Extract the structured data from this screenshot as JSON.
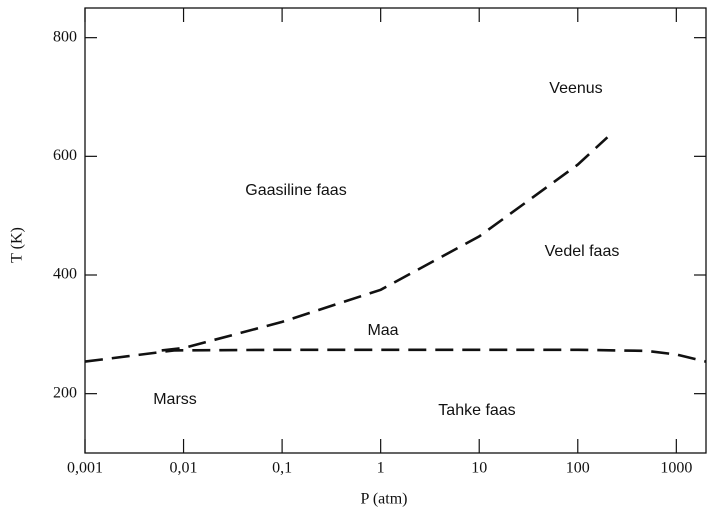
{
  "chart_data": {
    "type": "line",
    "xlabel": "P (atm)",
    "ylabel": "T (K)",
    "xscale": "log",
    "xlim": [
      0.001,
      2000
    ],
    "ylim": [
      100,
      850
    ],
    "xticks": [
      {
        "value": 0.001,
        "label": "0,001"
      },
      {
        "value": 0.01,
        "label": "0,01"
      },
      {
        "value": 0.1,
        "label": "0,1"
      },
      1,
      10,
      100,
      1000
    ],
    "yticks": [
      200,
      400,
      600,
      800
    ],
    "grid": false,
    "series": [
      {
        "color": "#111111",
        "dash": true,
        "x": [
          0.001,
          0.003,
          0.008,
          0.1,
          1,
          10,
          100,
          500,
          1000,
          2000
        ],
        "values": [
          254,
          264,
          273,
          274,
          274,
          274,
          274,
          272,
          266,
          254
        ]
      },
      {
        "color": "#111111",
        "dash": true,
        "x": [
          0.006,
          0.01,
          0.1,
          1,
          10,
          100,
          200
        ],
        "values": [
          273,
          277,
          321,
          375,
          465,
          586,
          632
        ]
      }
    ],
    "annotations": [
      "Veenus",
      "Gaasiline faas",
      "Vedel faas",
      "Maa",
      "Marss",
      "Tahke faas"
    ]
  }
}
